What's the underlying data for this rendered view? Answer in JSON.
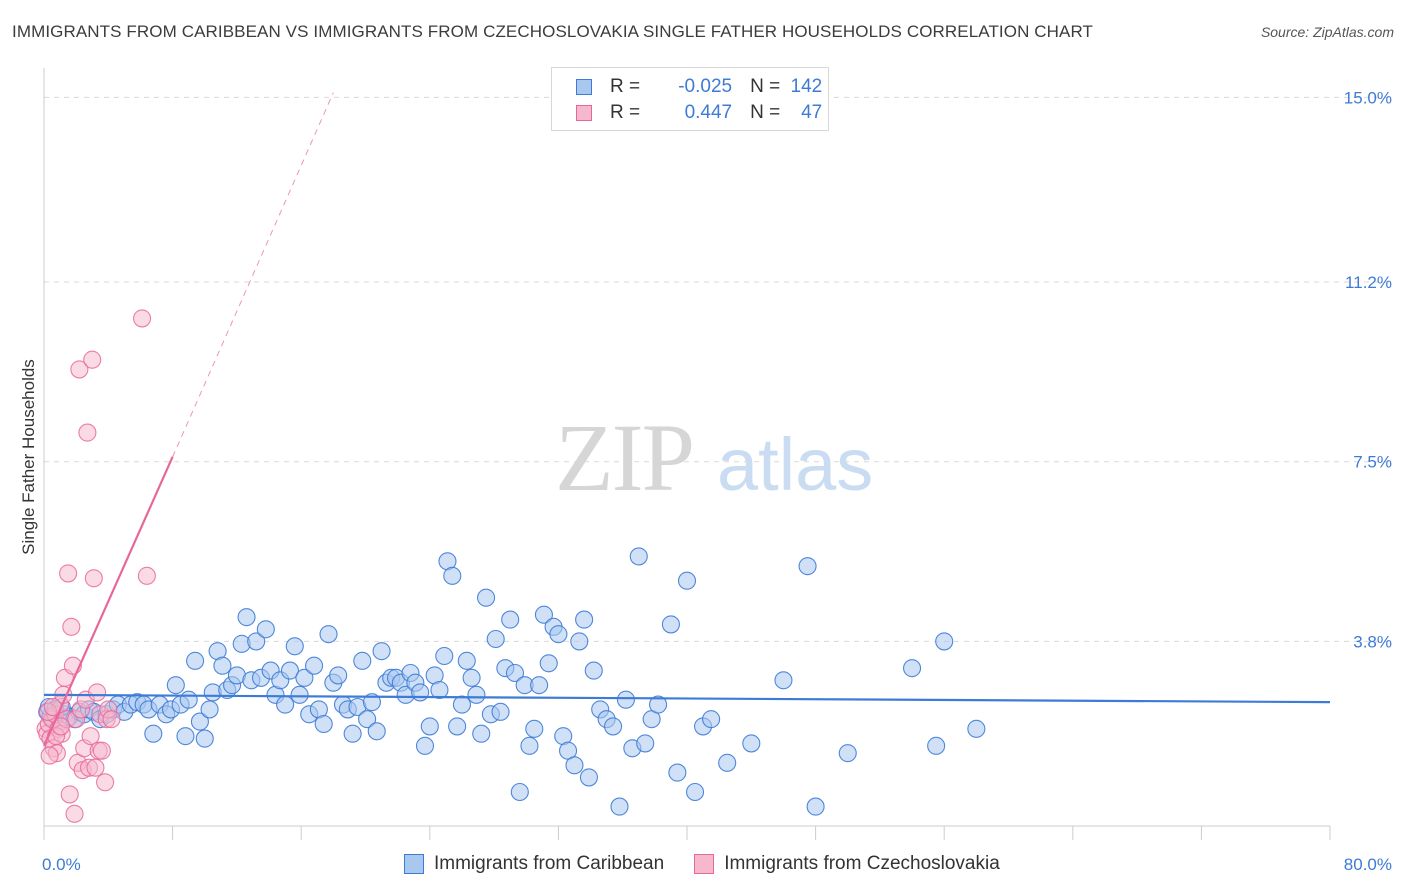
{
  "title": "IMMIGRANTS FROM CARIBBEAN VS IMMIGRANTS FROM CZECHOSLOVAKIA SINGLE FATHER HOUSEHOLDS CORRELATION CHART",
  "source": "Source: ZipAtlas.com",
  "watermark": {
    "zip": "ZIP",
    "atlas": "atlas"
  },
  "colors": {
    "blue": "#3d7bd6",
    "blue_fill": "#a9c8f0",
    "pink": "#e8679a",
    "pink_fill": "#f6b8cc",
    "grid": "#d9d9d9"
  },
  "legend": {
    "r_label": "R =",
    "n_label": "N =",
    "rows": [
      {
        "r": "-0.025",
        "n": "142"
      },
      {
        "r": "0.447",
        "n": "47"
      }
    ]
  },
  "bottom_legend": [
    "Immigrants from Caribbean",
    "Immigrants from Czechoslovakia"
  ],
  "chart_data": {
    "type": "scatter",
    "title": "IMMIGRANTS FROM CARIBBEAN VS IMMIGRANTS FROM CZECHOSLOVAKIA SINGLE FATHER HOUSEHOLDS CORRELATION CHART",
    "ylabel": "Single Father Households",
    "xlabel": "",
    "xlim": [
      0,
      80
    ],
    "ylim": [
      0,
      15.4
    ],
    "x_tick_labels": [
      "0.0%",
      "80.0%"
    ],
    "y_ticks": [
      3.8,
      7.5,
      11.2,
      15.0
    ],
    "y_tick_labels": [
      "3.8%",
      "7.5%",
      "11.2%",
      "15.0%"
    ],
    "series": [
      {
        "name": "Immigrants from Caribbean",
        "color": "#3d7bd6",
        "trend": {
          "x": [
            0,
            80
          ],
          "y": [
            2.7,
            2.55
          ]
        },
        "points": [
          [
            0.2,
            2.35
          ],
          [
            0.4,
            2.25
          ],
          [
            0.6,
            2.2
          ],
          [
            0.8,
            2.3
          ],
          [
            1.0,
            2.15
          ],
          [
            1.3,
            2.3
          ],
          [
            1.6,
            2.25
          ],
          [
            1.9,
            2.2
          ],
          [
            2.2,
            2.35
          ],
          [
            2.5,
            2.3
          ],
          [
            2.8,
            2.4
          ],
          [
            3.1,
            2.35
          ],
          [
            3.5,
            2.2
          ],
          [
            3.9,
            2.3
          ],
          [
            4.3,
            2.4
          ],
          [
            4.6,
            2.5
          ],
          [
            5.0,
            2.35
          ],
          [
            5.4,
            2.5
          ],
          [
            5.8,
            2.55
          ],
          [
            6.2,
            2.5
          ],
          [
            6.5,
            2.4
          ],
          [
            6.8,
            1.9
          ],
          [
            7.2,
            2.5
          ],
          [
            7.6,
            2.3
          ],
          [
            7.9,
            2.4
          ],
          [
            8.2,
            2.9
          ],
          [
            8.5,
            2.5
          ],
          [
            8.8,
            1.85
          ],
          [
            9.0,
            2.6
          ],
          [
            9.4,
            3.4
          ],
          [
            9.7,
            2.15
          ],
          [
            10.0,
            1.8
          ],
          [
            10.3,
            2.4
          ],
          [
            10.5,
            2.75
          ],
          [
            10.8,
            3.6
          ],
          [
            11.1,
            3.3
          ],
          [
            11.4,
            2.8
          ],
          [
            11.7,
            2.9
          ],
          [
            12.0,
            3.1
          ],
          [
            12.3,
            3.75
          ],
          [
            12.6,
            4.3
          ],
          [
            12.9,
            3.0
          ],
          [
            13.2,
            3.8
          ],
          [
            13.5,
            3.05
          ],
          [
            13.8,
            4.05
          ],
          [
            14.1,
            3.2
          ],
          [
            14.4,
            2.7
          ],
          [
            14.7,
            3.0
          ],
          [
            15.0,
            2.5
          ],
          [
            15.3,
            3.2
          ],
          [
            15.6,
            3.7
          ],
          [
            15.9,
            2.7
          ],
          [
            16.2,
            3.05
          ],
          [
            16.5,
            2.3
          ],
          [
            16.8,
            3.3
          ],
          [
            17.1,
            2.4
          ],
          [
            17.4,
            2.1
          ],
          [
            17.7,
            3.95
          ],
          [
            18.0,
            2.95
          ],
          [
            18.3,
            3.1
          ],
          [
            18.6,
            2.5
          ],
          [
            18.9,
            2.4
          ],
          [
            19.2,
            1.9
          ],
          [
            19.5,
            2.45
          ],
          [
            19.8,
            3.4
          ],
          [
            20.1,
            2.2
          ],
          [
            20.4,
            2.55
          ],
          [
            20.7,
            1.95
          ],
          [
            21.0,
            3.6
          ],
          [
            21.3,
            2.95
          ],
          [
            21.6,
            3.05
          ],
          [
            21.9,
            3.05
          ],
          [
            22.2,
            2.95
          ],
          [
            22.5,
            2.7
          ],
          [
            22.8,
            3.15
          ],
          [
            23.1,
            2.95
          ],
          [
            23.4,
            2.75
          ],
          [
            23.7,
            1.65
          ],
          [
            24.0,
            2.05
          ],
          [
            24.3,
            3.1
          ],
          [
            24.6,
            2.8
          ],
          [
            24.9,
            3.5
          ],
          [
            25.1,
            5.45
          ],
          [
            25.4,
            5.15
          ],
          [
            25.7,
            2.05
          ],
          [
            26.0,
            2.5
          ],
          [
            26.3,
            3.4
          ],
          [
            26.6,
            3.05
          ],
          [
            26.9,
            2.7
          ],
          [
            27.2,
            1.9
          ],
          [
            27.5,
            4.7
          ],
          [
            27.8,
            2.3
          ],
          [
            28.1,
            3.85
          ],
          [
            28.4,
            2.35
          ],
          [
            28.7,
            3.25
          ],
          [
            29.0,
            4.25
          ],
          [
            29.3,
            3.15
          ],
          [
            29.6,
            0.7
          ],
          [
            29.9,
            2.9
          ],
          [
            30.2,
            1.65
          ],
          [
            30.5,
            2.0
          ],
          [
            30.8,
            2.9
          ],
          [
            31.1,
            4.35
          ],
          [
            31.4,
            3.35
          ],
          [
            31.7,
            4.1
          ],
          [
            32.0,
            3.95
          ],
          [
            32.3,
            1.85
          ],
          [
            32.6,
            1.55
          ],
          [
            33.0,
            1.25
          ],
          [
            33.3,
            3.8
          ],
          [
            33.6,
            4.25
          ],
          [
            33.9,
            1.0
          ],
          [
            34.2,
            3.2
          ],
          [
            34.6,
            2.4
          ],
          [
            35.0,
            2.2
          ],
          [
            35.4,
            2.05
          ],
          [
            35.8,
            0.4
          ],
          [
            36.2,
            2.6
          ],
          [
            36.6,
            1.6
          ],
          [
            37.0,
            5.55
          ],
          [
            37.4,
            1.7
          ],
          [
            37.8,
            2.2
          ],
          [
            38.2,
            2.5
          ],
          [
            39.0,
            4.15
          ],
          [
            39.4,
            1.1
          ],
          [
            40.0,
            5.05
          ],
          [
            40.5,
            0.7
          ],
          [
            41.0,
            2.05
          ],
          [
            41.5,
            2.2
          ],
          [
            42.5,
            1.3
          ],
          [
            44.0,
            1.7
          ],
          [
            46.0,
            3.0
          ],
          [
            47.5,
            5.35
          ],
          [
            48.0,
            0.4
          ],
          [
            50.0,
            1.5
          ],
          [
            54.0,
            3.25
          ],
          [
            55.5,
            1.65
          ],
          [
            56.0,
            3.8
          ],
          [
            58.0,
            2.0
          ],
          [
            0.3,
            2.45
          ],
          [
            0.7,
            2.4
          ],
          [
            1.1,
            2.45
          ]
        ]
      },
      {
        "name": "Immigrants from Czechoslovakia",
        "color": "#e8679a",
        "trend": {
          "x": [
            0,
            8
          ],
          "y": [
            1.65,
            7.6
          ]
        },
        "trend_extension": {
          "x": [
            8,
            18
          ],
          "y": [
            7.6,
            15.1
          ]
        },
        "points": [
          [
            0.1,
            2.0
          ],
          [
            0.2,
            1.9
          ],
          [
            0.3,
            2.1
          ],
          [
            0.4,
            1.8
          ],
          [
            0.5,
            2.2
          ],
          [
            0.6,
            1.6
          ],
          [
            0.7,
            2.3
          ],
          [
            0.8,
            1.5
          ],
          [
            0.9,
            2.0
          ],
          [
            1.0,
            2.5
          ],
          [
            1.1,
            1.9
          ],
          [
            1.2,
            2.7
          ],
          [
            1.3,
            3.05
          ],
          [
            1.4,
            2.2
          ],
          [
            1.5,
            5.2
          ],
          [
            1.6,
            0.65
          ],
          [
            1.7,
            4.1
          ],
          [
            1.8,
            3.3
          ],
          [
            1.9,
            0.25
          ],
          [
            2.0,
            2.2
          ],
          [
            2.1,
            1.3
          ],
          [
            2.2,
            9.4
          ],
          [
            2.3,
            2.4
          ],
          [
            2.4,
            1.15
          ],
          [
            2.5,
            1.6
          ],
          [
            2.6,
            2.6
          ],
          [
            2.7,
            8.1
          ],
          [
            2.8,
            1.2
          ],
          [
            2.9,
            1.85
          ],
          [
            3.0,
            9.6
          ],
          [
            3.1,
            5.1
          ],
          [
            3.2,
            1.2
          ],
          [
            3.3,
            2.75
          ],
          [
            3.4,
            1.55
          ],
          [
            3.5,
            2.3
          ],
          [
            3.6,
            1.55
          ],
          [
            3.8,
            0.9
          ],
          [
            3.9,
            2.2
          ],
          [
            4.0,
            2.4
          ],
          [
            4.2,
            2.2
          ],
          [
            6.1,
            10.45
          ],
          [
            6.4,
            5.15
          ],
          [
            0.25,
            2.35
          ],
          [
            0.55,
            2.45
          ],
          [
            0.75,
            1.85
          ],
          [
            1.05,
            2.05
          ],
          [
            0.35,
            1.45
          ]
        ]
      }
    ]
  }
}
